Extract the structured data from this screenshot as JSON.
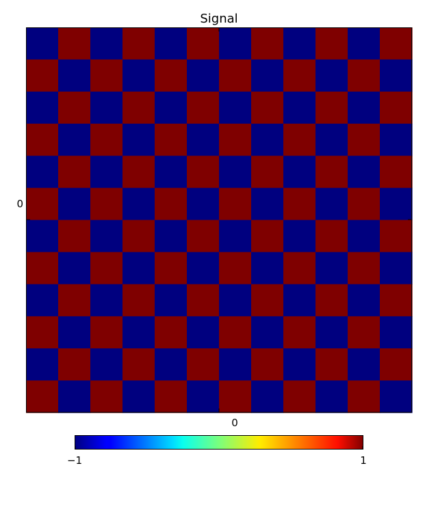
{
  "chart_data": {
    "type": "heatmap",
    "title": "Signal",
    "xlabel": "",
    "ylabel": "",
    "x_tick_labels": [
      "0"
    ],
    "y_tick_labels": [
      "0"
    ],
    "rows": 12,
    "cols": 12,
    "values": [
      [
        -1,
        1,
        -1,
        1,
        -1,
        1,
        -1,
        1,
        -1,
        1,
        -1,
        1
      ],
      [
        1,
        -1,
        1,
        -1,
        1,
        -1,
        1,
        -1,
        1,
        -1,
        1,
        -1
      ],
      [
        -1,
        1,
        -1,
        1,
        -1,
        1,
        -1,
        1,
        -1,
        1,
        -1,
        1
      ],
      [
        1,
        -1,
        1,
        -1,
        1,
        -1,
        1,
        -1,
        1,
        -1,
        1,
        -1
      ],
      [
        -1,
        1,
        -1,
        1,
        -1,
        1,
        -1,
        1,
        -1,
        1,
        -1,
        1
      ],
      [
        1,
        -1,
        1,
        -1,
        1,
        -1,
        1,
        -1,
        1,
        -1,
        1,
        -1
      ],
      [
        -1,
        1,
        -1,
        1,
        -1,
        1,
        -1,
        1,
        -1,
        1,
        -1,
        1
      ],
      [
        1,
        -1,
        1,
        -1,
        1,
        -1,
        1,
        -1,
        1,
        -1,
        1,
        -1
      ],
      [
        -1,
        1,
        -1,
        1,
        -1,
        1,
        -1,
        1,
        -1,
        1,
        -1,
        1
      ],
      [
        1,
        -1,
        1,
        -1,
        1,
        -1,
        1,
        -1,
        1,
        -1,
        1,
        -1
      ],
      [
        -1,
        1,
        -1,
        1,
        -1,
        1,
        -1,
        1,
        -1,
        1,
        -1,
        1
      ],
      [
        1,
        -1,
        1,
        -1,
        1,
        -1,
        1,
        -1,
        1,
        -1,
        1,
        -1
      ]
    ],
    "colorbar": {
      "min": -1,
      "max": 1,
      "min_label": "−1",
      "max_label": "1",
      "orientation": "horizontal",
      "placement": "bottom"
    },
    "colormap": "jet",
    "colors": {
      "low": "#00007f",
      "high": "#7f0000"
    },
    "grid": false
  }
}
